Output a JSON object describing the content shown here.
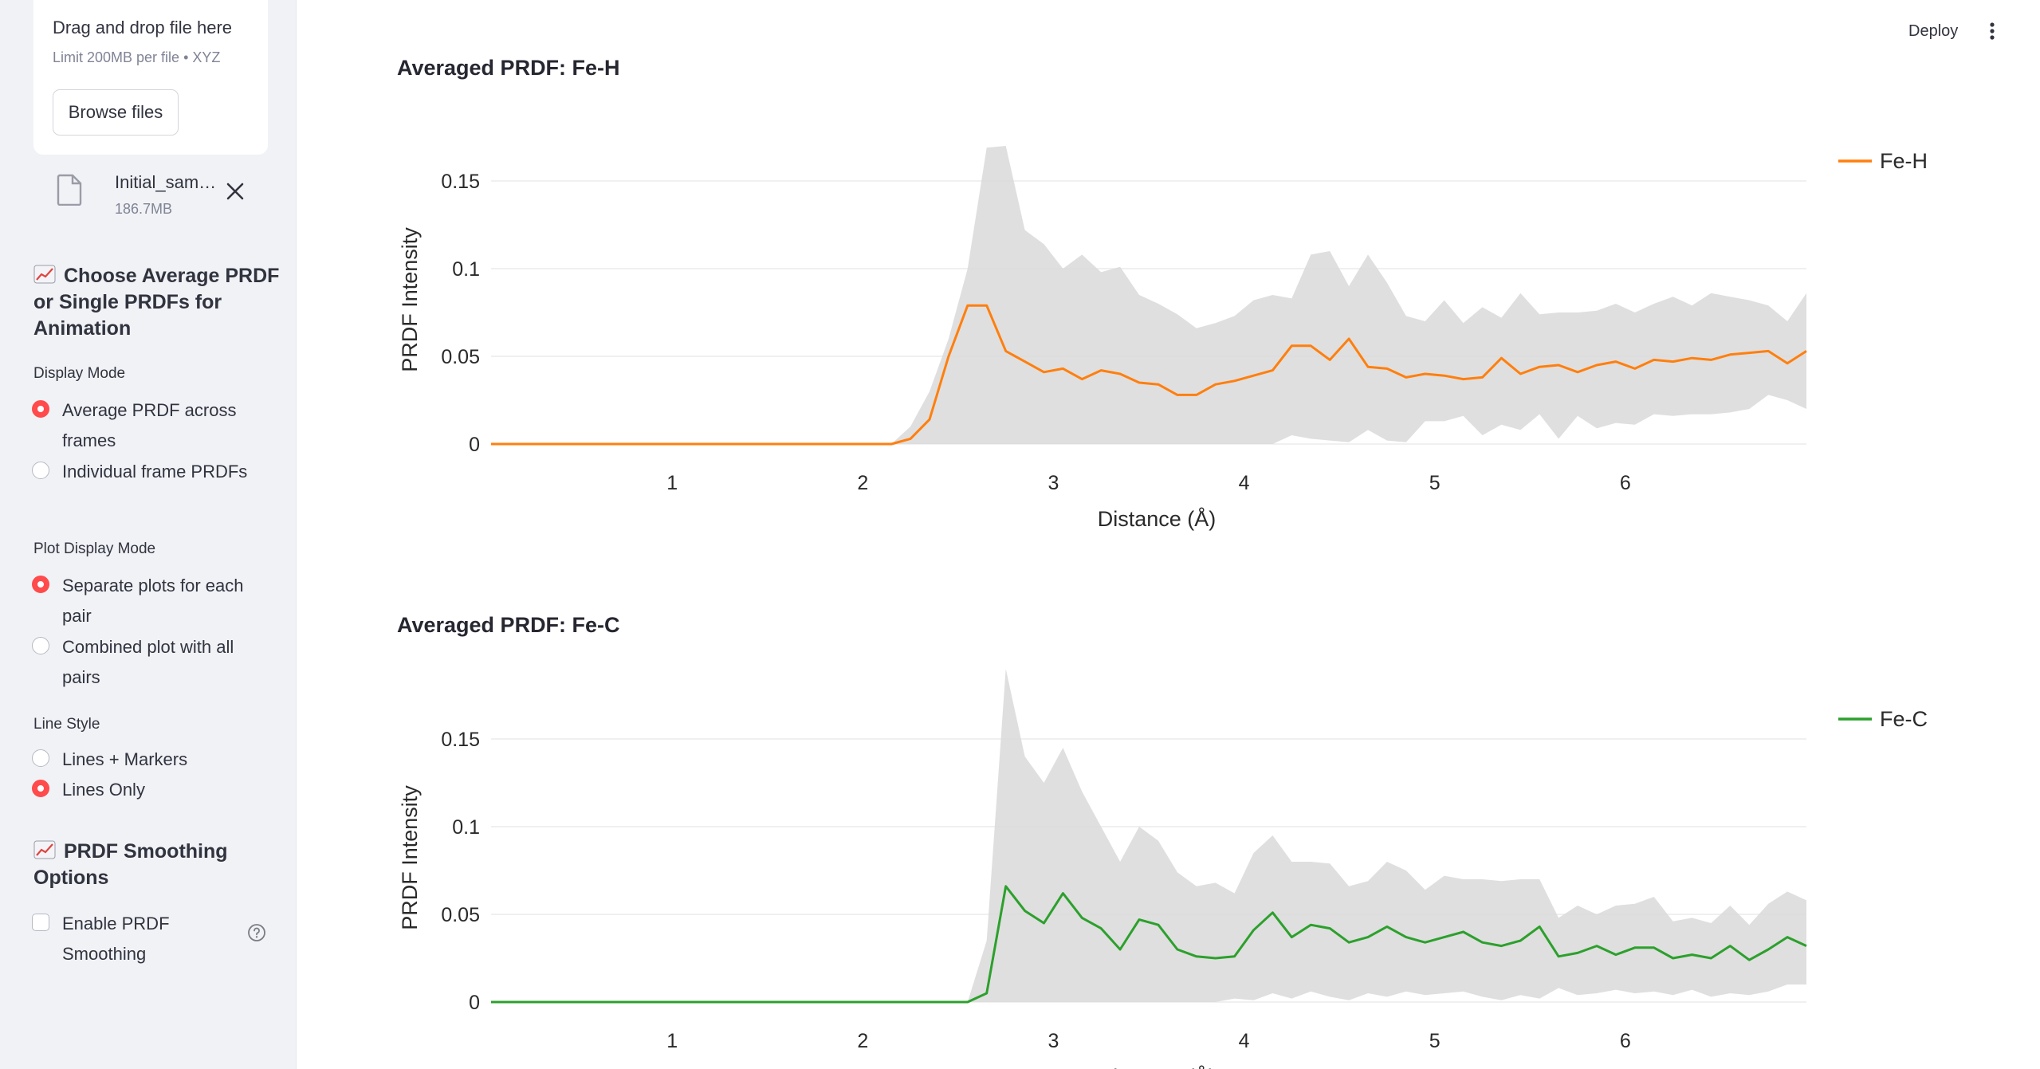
{
  "sidebar": {
    "uploader": {
      "title": "Drag and drop file here",
      "limit": "Limit 200MB per file • XYZ",
      "browse_label": "Browse files"
    },
    "file": {
      "name": "Initial_sam…",
      "size": "186.7MB",
      "icon": "file-icon",
      "remove_icon": "close-icon"
    },
    "prdf_section": {
      "emoji": "chart-increasing-icon",
      "title": "Choose Average PRDF or Single PRDFs for Animation",
      "display_mode": {
        "label": "Display Mode",
        "options": [
          {
            "label": "Average PRDF across frames",
            "selected": true
          },
          {
            "label": "Individual frame PRDFs",
            "selected": false
          }
        ]
      },
      "plot_display_mode": {
        "label": "Plot Display Mode",
        "options": [
          {
            "label": "Separate plots for each pair",
            "selected": true
          },
          {
            "label": "Combined plot with all pairs",
            "selected": false
          }
        ]
      },
      "line_style": {
        "label": "Line Style",
        "options": [
          {
            "label": "Lines + Markers",
            "selected": false
          },
          {
            "label": "Lines Only",
            "selected": true
          }
        ]
      }
    },
    "smoothing_section": {
      "emoji": "chart-increasing-icon",
      "title": "PRDF Smoothing Options",
      "checkbox": {
        "label": "Enable PRDF Smoothing",
        "checked": false
      },
      "help_icon": "question-circle-icon"
    }
  },
  "topbar": {
    "deploy_label": "Deploy",
    "menu_icon": "more-vertical-icon"
  },
  "colors": {
    "accent": "#ff4b4b",
    "fe_h": "#ff7f0e",
    "fe_c": "#2ca02c",
    "band": "#d9d9d9"
  },
  "chart_data": [
    {
      "type": "line",
      "title": "Averaged PRDF: Fe-H",
      "xlabel": "Distance (Å)",
      "ylabel": "PRDF Intensity",
      "xlim": [
        0.05,
        6.95
      ],
      "ylim": [
        0,
        0.16
      ],
      "xticks": [
        1,
        2,
        3,
        4,
        5,
        6
      ],
      "yticks": [
        0,
        0.05,
        0.1,
        0.15
      ],
      "ytick_labels": [
        "0",
        "0.05",
        "0.1",
        "0.15"
      ],
      "grid": true,
      "legend_position": "top-right",
      "series": [
        {
          "name": "Fe-H",
          "color": "#ff7f0e",
          "x": [
            0.05,
            0.15,
            0.25,
            0.35,
            0.45,
            0.55,
            0.65,
            0.75,
            0.85,
            0.95,
            1.05,
            1.15,
            1.25,
            1.35,
            1.45,
            1.55,
            1.65,
            1.75,
            1.85,
            1.95,
            2.05,
            2.15,
            2.25,
            2.35,
            2.45,
            2.55,
            2.65,
            2.75,
            2.85,
            2.95,
            3.05,
            3.15,
            3.25,
            3.35,
            3.45,
            3.55,
            3.65,
            3.75,
            3.85,
            3.95,
            4.05,
            4.15,
            4.25,
            4.35,
            4.45,
            4.55,
            4.65,
            4.75,
            4.85,
            4.95,
            5.05,
            5.15,
            5.25,
            5.35,
            5.45,
            5.55,
            5.65,
            5.75,
            5.85,
            5.95,
            6.05,
            6.15,
            6.25,
            6.35,
            6.45,
            6.55,
            6.65,
            6.75,
            6.85,
            6.95
          ],
          "values": [
            0,
            0,
            0,
            0,
            0,
            0,
            0,
            0,
            0,
            0,
            0,
            0,
            0,
            0,
            0,
            0,
            0,
            0,
            0,
            0,
            0,
            0,
            0.003,
            0.014,
            0.05,
            0.079,
            0.079,
            0.053,
            0.047,
            0.041,
            0.043,
            0.037,
            0.042,
            0.04,
            0.035,
            0.034,
            0.028,
            0.028,
            0.034,
            0.036,
            0.039,
            0.042,
            0.056,
            0.056,
            0.048,
            0.06,
            0.044,
            0.043,
            0.038,
            0.04,
            0.039,
            0.037,
            0.038,
            0.049,
            0.04,
            0.044,
            0.045,
            0.041,
            0.045,
            0.047,
            0.043,
            0.048,
            0.047,
            0.049,
            0.048,
            0.051,
            0.052,
            0.053,
            0.046,
            0.053
          ],
          "band_upper": [
            0,
            0,
            0,
            0,
            0,
            0,
            0,
            0,
            0,
            0,
            0,
            0,
            0,
            0,
            0,
            0,
            0,
            0,
            0,
            0,
            0,
            0,
            0.01,
            0.03,
            0.06,
            0.1,
            0.169,
            0.17,
            0.122,
            0.114,
            0.1,
            0.108,
            0.098,
            0.101,
            0.085,
            0.08,
            0.074,
            0.066,
            0.069,
            0.073,
            0.082,
            0.085,
            0.083,
            0.108,
            0.11,
            0.09,
            0.108,
            0.092,
            0.073,
            0.07,
            0.082,
            0.069,
            0.078,
            0.072,
            0.086,
            0.074,
            0.075,
            0.075,
            0.076,
            0.08,
            0.075,
            0.08,
            0.084,
            0.079,
            0.086,
            0.084,
            0.082,
            0.079,
            0.07,
            0.086
          ],
          "band_lower": [
            0,
            0,
            0,
            0,
            0,
            0,
            0,
            0,
            0,
            0,
            0,
            0,
            0,
            0,
            0,
            0,
            0,
            0,
            0,
            0,
            0,
            0,
            0,
            0,
            0,
            0,
            0,
            0,
            0,
            0,
            0,
            0,
            0,
            0,
            0,
            0,
            0,
            0,
            0,
            0,
            0,
            0,
            0.005,
            0.003,
            0.002,
            0.001,
            0.008,
            0.002,
            0.001,
            0.013,
            0.013,
            0.016,
            0.005,
            0.011,
            0.008,
            0.017,
            0.003,
            0.016,
            0.009,
            0.012,
            0.011,
            0.017,
            0.016,
            0.017,
            0.017,
            0.018,
            0.02,
            0.028,
            0.025,
            0.02
          ]
        }
      ]
    },
    {
      "type": "line",
      "title": "Averaged PRDF: Fe-C",
      "xlabel": "Distance (Å)",
      "ylabel": "PRDF Intensity",
      "xlim": [
        0.05,
        6.95
      ],
      "ylim": [
        0,
        0.16
      ],
      "xticks": [
        1,
        2,
        3,
        4,
        5,
        6
      ],
      "yticks": [
        0,
        0.05,
        0.1,
        0.15
      ],
      "ytick_labels": [
        "0",
        "0.05",
        "0.1",
        "0.15"
      ],
      "grid": true,
      "legend_position": "top-right",
      "series": [
        {
          "name": "Fe-C",
          "color": "#2ca02c",
          "x": [
            0.05,
            0.15,
            0.25,
            0.35,
            0.45,
            0.55,
            0.65,
            0.75,
            0.85,
            0.95,
            1.05,
            1.15,
            1.25,
            1.35,
            1.45,
            1.55,
            1.65,
            1.75,
            1.85,
            1.95,
            2.05,
            2.15,
            2.25,
            2.35,
            2.45,
            2.55,
            2.65,
            2.75,
            2.85,
            2.95,
            3.05,
            3.15,
            3.25,
            3.35,
            3.45,
            3.55,
            3.65,
            3.75,
            3.85,
            3.95,
            4.05,
            4.15,
            4.25,
            4.35,
            4.45,
            4.55,
            4.65,
            4.75,
            4.85,
            4.95,
            5.05,
            5.15,
            5.25,
            5.35,
            5.45,
            5.55,
            5.65,
            5.75,
            5.85,
            5.95,
            6.05,
            6.15,
            6.25,
            6.35,
            6.45,
            6.55,
            6.65,
            6.75,
            6.85,
            6.95
          ],
          "values": [
            0,
            0,
            0,
            0,
            0,
            0,
            0,
            0,
            0,
            0,
            0,
            0,
            0,
            0,
            0,
            0,
            0,
            0,
            0,
            0,
            0,
            0,
            0,
            0,
            0,
            0,
            0.005,
            0.066,
            0.052,
            0.045,
            0.062,
            0.048,
            0.042,
            0.03,
            0.047,
            0.044,
            0.03,
            0.026,
            0.025,
            0.026,
            0.041,
            0.051,
            0.037,
            0.044,
            0.042,
            0.034,
            0.037,
            0.043,
            0.037,
            0.034,
            0.037,
            0.04,
            0.034,
            0.032,
            0.035,
            0.043,
            0.026,
            0.028,
            0.032,
            0.027,
            0.031,
            0.031,
            0.025,
            0.027,
            0.025,
            0.032,
            0.024,
            0.03,
            0.037,
            0.032
          ],
          "band_upper": [
            0,
            0,
            0,
            0,
            0,
            0,
            0,
            0,
            0,
            0,
            0,
            0,
            0,
            0,
            0,
            0,
            0,
            0,
            0,
            0,
            0,
            0,
            0,
            0,
            0,
            0,
            0.035,
            0.19,
            0.14,
            0.125,
            0.145,
            0.12,
            0.1,
            0.08,
            0.1,
            0.092,
            0.074,
            0.066,
            0.068,
            0.062,
            0.085,
            0.095,
            0.08,
            0.08,
            0.079,
            0.066,
            0.069,
            0.08,
            0.075,
            0.064,
            0.072,
            0.07,
            0.07,
            0.069,
            0.07,
            0.07,
            0.048,
            0.055,
            0.05,
            0.055,
            0.056,
            0.06,
            0.046,
            0.048,
            0.045,
            0.055,
            0.044,
            0.056,
            0.063,
            0.058
          ],
          "band_lower": [
            0,
            0,
            0,
            0,
            0,
            0,
            0,
            0,
            0,
            0,
            0,
            0,
            0,
            0,
            0,
            0,
            0,
            0,
            0,
            0,
            0,
            0,
            0,
            0,
            0,
            0,
            0,
            0,
            0,
            0,
            0,
            0,
            0,
            0,
            0,
            0,
            0,
            0,
            0,
            0.002,
            0.001,
            0.005,
            0.002,
            0.006,
            0.003,
            0.001,
            0.005,
            0.003,
            0.006,
            0.004,
            0.005,
            0.006,
            0.003,
            0.001,
            0.004,
            0.002,
            0.008,
            0.004,
            0.005,
            0.007,
            0.005,
            0.006,
            0.004,
            0.007,
            0.003,
            0.005,
            0.004,
            0.006,
            0.01,
            0.01
          ]
        }
      ]
    }
  ]
}
